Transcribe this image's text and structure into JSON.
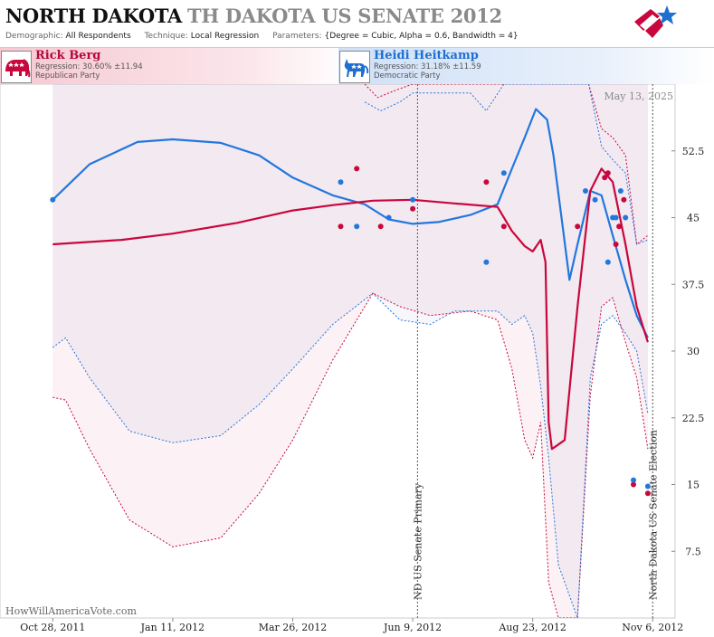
{
  "header": {
    "title_state": "NORTH DAKOTA",
    "title_sub": "TH DAKOTA US SENATE 2012",
    "demographic_label": "Demographic:",
    "demographic_value": "All Respondents",
    "technique_label": "Technique:",
    "technique_value": "Local Regression",
    "parameters_label": "Parameters:",
    "parameters_value": "{Degree = Cubic, Alpha = 0.6, Bandwidth = 4}"
  },
  "candidates": [
    {
      "name": "Rick Berg",
      "regression": "Regression: 30.60% ±11.94",
      "party": "Republican Party",
      "icon": "elephant-icon",
      "color": "#c8073c"
    },
    {
      "name": "Heidi Heitkamp",
      "regression": "Regression: 31.18% ±11.59",
      "party": "Democratic Party",
      "icon": "donkey-icon",
      "color": "#2277dd"
    }
  ],
  "chart": {
    "current_date": "May 13, 2025",
    "watermark": "HowWillAmericaVote.com"
  },
  "chart_data": {
    "type": "line",
    "ylim": [
      0,
      60
    ],
    "yticks": [
      7.5,
      15,
      22.5,
      30,
      37.5,
      45,
      52.5
    ],
    "ytick_labels": [
      "7.5",
      "15",
      "22.5",
      "30",
      "37.5",
      "45",
      "52.5"
    ],
    "xlim": [
      "2011-09-25",
      "2012-11-20"
    ],
    "xticks": [
      "2011-10-28",
      "2012-01-11",
      "2012-03-26",
      "2012-06-09",
      "2012-08-23",
      "2012-11-06"
    ],
    "xtick_labels": [
      "Oct 28, 2011",
      "Jan 11, 2012",
      "Mar 26, 2012",
      "Jun 9, 2012",
      "Aug 23, 2012",
      "Nov 6, 2012"
    ],
    "events": [
      {
        "date": "2012-06-12",
        "label": "ND US Senate Primary"
      },
      {
        "date": "2012-11-06",
        "label": "North Dakota US Senate Election"
      }
    ],
    "series": [
      {
        "name": "Rick Berg",
        "color": "#c8073c",
        "trend": [
          [
            "2011-10-28",
            42.0
          ],
          [
            "2011-12-10",
            42.5
          ],
          [
            "2012-01-11",
            43.2
          ],
          [
            "2012-02-20",
            44.4
          ],
          [
            "2012-03-26",
            45.8
          ],
          [
            "2012-04-20",
            46.4
          ],
          [
            "2012-05-15",
            46.9
          ],
          [
            "2012-06-09",
            47.0
          ],
          [
            "2012-07-05",
            46.6
          ],
          [
            "2012-08-01",
            46.2
          ],
          [
            "2012-08-10",
            43.5
          ],
          [
            "2012-08-18",
            41.8
          ],
          [
            "2012-08-23",
            41.2
          ],
          [
            "2012-08-28",
            42.5
          ],
          [
            "2012-08-31",
            40.0
          ],
          [
            "2012-09-02",
            22.0
          ],
          [
            "2012-09-04",
            19.0
          ],
          [
            "2012-09-08",
            19.5
          ],
          [
            "2012-09-12",
            20.0
          ],
          [
            "2012-09-20",
            35.0
          ],
          [
            "2012-09-28",
            48.0
          ],
          [
            "2012-10-05",
            50.5
          ],
          [
            "2012-10-12",
            49.0
          ],
          [
            "2012-10-20",
            42.0
          ],
          [
            "2012-10-27",
            35.0
          ],
          [
            "2012-11-03",
            31.0
          ]
        ],
        "upper": [
          [
            "2012-05-10",
            60.0
          ],
          [
            "2012-05-18",
            58.5
          ],
          [
            "2012-06-01",
            59.5
          ],
          [
            "2012-06-09",
            60.0
          ],
          [
            "2012-09-27",
            60.0
          ],
          [
            "2012-10-05",
            55.0
          ],
          [
            "2012-10-12",
            54.0
          ],
          [
            "2012-10-20",
            52.0
          ],
          [
            "2012-10-27",
            42.0
          ],
          [
            "2012-11-03",
            43.0
          ]
        ],
        "lower": [
          [
            "2011-10-28",
            24.8
          ],
          [
            "2011-11-05",
            24.5
          ],
          [
            "2011-11-20",
            19.0
          ],
          [
            "2011-12-15",
            11.0
          ],
          [
            "2012-01-11",
            8.0
          ],
          [
            "2012-02-10",
            9.0
          ],
          [
            "2012-03-05",
            14.0
          ],
          [
            "2012-03-26",
            20.0
          ],
          [
            "2012-04-20",
            29.0
          ],
          [
            "2012-05-15",
            36.5
          ],
          [
            "2012-06-01",
            35.0
          ],
          [
            "2012-06-20",
            34.0
          ],
          [
            "2012-07-15",
            34.5
          ],
          [
            "2012-08-01",
            33.5
          ],
          [
            "2012-08-10",
            28.0
          ],
          [
            "2012-08-18",
            20.0
          ],
          [
            "2012-08-23",
            18.0
          ],
          [
            "2012-08-28",
            22.0
          ],
          [
            "2012-09-02",
            4.0
          ],
          [
            "2012-09-08",
            0.0
          ],
          [
            "2012-09-20",
            0.0
          ],
          [
            "2012-09-28",
            25.0
          ],
          [
            "2012-10-05",
            35.0
          ],
          [
            "2012-10-12",
            36.0
          ],
          [
            "2012-10-20",
            31.0
          ],
          [
            "2012-10-27",
            27.0
          ],
          [
            "2012-11-03",
            19.0
          ]
        ],
        "polls": [
          [
            "2012-04-25",
            44
          ],
          [
            "2012-05-05",
            50.5
          ],
          [
            "2012-05-20",
            44
          ],
          [
            "2012-06-09",
            46
          ],
          [
            "2012-07-25",
            49
          ],
          [
            "2012-08-05",
            44
          ],
          [
            "2012-09-20",
            44
          ],
          [
            "2012-10-07",
            49.5
          ],
          [
            "2012-10-09",
            50
          ],
          [
            "2012-10-14",
            42
          ],
          [
            "2012-10-16",
            44
          ],
          [
            "2012-10-19",
            47
          ],
          [
            "2012-10-25",
            15
          ],
          [
            "2012-11-03",
            14
          ]
        ]
      },
      {
        "name": "Heidi Heitkamp",
        "color": "#2277dd",
        "trend": [
          [
            "2011-10-28",
            47.0
          ],
          [
            "2011-11-20",
            51.0
          ],
          [
            "2011-12-20",
            53.5
          ],
          [
            "2012-01-11",
            53.8
          ],
          [
            "2012-02-10",
            53.4
          ],
          [
            "2012-03-05",
            52.0
          ],
          [
            "2012-03-26",
            49.5
          ],
          [
            "2012-04-20",
            47.5
          ],
          [
            "2012-05-10",
            46.5
          ],
          [
            "2012-05-25",
            44.8
          ],
          [
            "2012-06-09",
            44.3
          ],
          [
            "2012-06-25",
            44.5
          ],
          [
            "2012-07-15",
            45.3
          ],
          [
            "2012-08-01",
            46.5
          ],
          [
            "2012-08-10",
            50.5
          ],
          [
            "2012-08-18",
            54.0
          ],
          [
            "2012-08-25",
            57.2
          ],
          [
            "2012-09-01",
            56.0
          ],
          [
            "2012-09-05",
            52.0
          ],
          [
            "2012-09-10",
            45.0
          ],
          [
            "2012-09-15",
            38.0
          ],
          [
            "2012-09-20",
            42.0
          ],
          [
            "2012-09-28",
            48.0
          ],
          [
            "2012-10-05",
            47.5
          ],
          [
            "2012-10-12",
            43.0
          ],
          [
            "2012-10-20",
            38.0
          ],
          [
            "2012-10-27",
            34.0
          ],
          [
            "2012-11-03",
            31.5
          ]
        ],
        "upper": [
          [
            "2012-05-10",
            58.0
          ],
          [
            "2012-05-20",
            57.0
          ],
          [
            "2012-06-01",
            58.0
          ],
          [
            "2012-06-09",
            59.0
          ],
          [
            "2012-07-15",
            59.0
          ],
          [
            "2012-07-25",
            57.0
          ],
          [
            "2012-08-05",
            60.0
          ],
          [
            "2012-09-27",
            60.0
          ],
          [
            "2012-10-05",
            53.0
          ],
          [
            "2012-10-12",
            51.5
          ],
          [
            "2012-10-20",
            50.0
          ],
          [
            "2012-10-27",
            42.0
          ],
          [
            "2012-11-03",
            42.5
          ]
        ],
        "lower": [
          [
            "2011-10-28",
            30.4
          ],
          [
            "2011-11-05",
            31.5
          ],
          [
            "2011-11-20",
            27.0
          ],
          [
            "2011-12-15",
            21.0
          ],
          [
            "2012-01-11",
            19.7
          ],
          [
            "2012-02-10",
            20.5
          ],
          [
            "2012-03-05",
            24.0
          ],
          [
            "2012-03-26",
            28.0
          ],
          [
            "2012-04-20",
            33.0
          ],
          [
            "2012-05-15",
            36.5
          ],
          [
            "2012-06-01",
            33.5
          ],
          [
            "2012-06-20",
            33.0
          ],
          [
            "2012-07-05",
            34.5
          ],
          [
            "2012-08-01",
            34.5
          ],
          [
            "2012-08-10",
            33.0
          ],
          [
            "2012-08-18",
            34.0
          ],
          [
            "2012-08-23",
            32.0
          ],
          [
            "2012-08-28",
            26.0
          ],
          [
            "2012-09-02",
            18.0
          ],
          [
            "2012-09-08",
            6.0
          ],
          [
            "2012-09-20",
            0.0
          ],
          [
            "2012-09-28",
            27.0
          ],
          [
            "2012-10-05",
            33.0
          ],
          [
            "2012-10-12",
            34.0
          ],
          [
            "2012-10-20",
            32.0
          ],
          [
            "2012-10-27",
            30.0
          ],
          [
            "2012-11-03",
            23.0
          ]
        ],
        "polls": [
          [
            "2011-10-28",
            47
          ],
          [
            "2012-04-25",
            49
          ],
          [
            "2012-05-05",
            44
          ],
          [
            "2012-05-25",
            45
          ],
          [
            "2012-06-09",
            47
          ],
          [
            "2012-07-25",
            40
          ],
          [
            "2012-08-05",
            50
          ],
          [
            "2012-09-25",
            48
          ],
          [
            "2012-10-01",
            47
          ],
          [
            "2012-10-09",
            40
          ],
          [
            "2012-10-12",
            45
          ],
          [
            "2012-10-14",
            45
          ],
          [
            "2012-10-17",
            48
          ],
          [
            "2012-10-20",
            45
          ],
          [
            "2012-10-25",
            15.5
          ],
          [
            "2012-11-03",
            14.8
          ]
        ]
      }
    ]
  }
}
